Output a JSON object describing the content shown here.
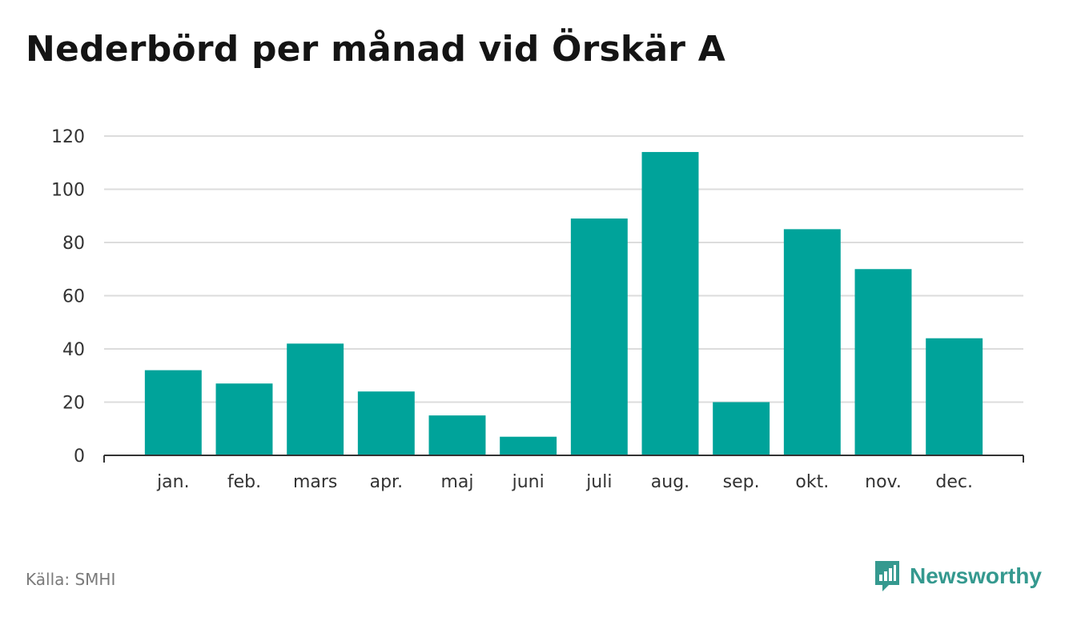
{
  "header": {
    "title": "Nederbörd per månad vid Örskär A"
  },
  "footer": {
    "source": "Källa: SMHI",
    "brand": "Newsworthy"
  },
  "colors": {
    "bar": "#00a39a",
    "grid": "#dcdcdc",
    "axis": "#333333",
    "brand": "#35998f"
  },
  "chart_data": {
    "type": "bar",
    "title": "Nederbörd per månad vid Örskär A",
    "categories": [
      "jan.",
      "feb.",
      "mars",
      "apr.",
      "maj",
      "juni",
      "juli",
      "aug.",
      "sep.",
      "okt.",
      "nov.",
      "dec."
    ],
    "values": [
      32,
      27,
      42,
      24,
      15,
      7,
      89,
      114,
      20,
      85,
      70,
      44
    ],
    "ylim": [
      0,
      120
    ],
    "yticks": [
      0,
      20,
      40,
      60,
      80,
      100,
      120
    ],
    "grid": true,
    "legend": "none"
  }
}
